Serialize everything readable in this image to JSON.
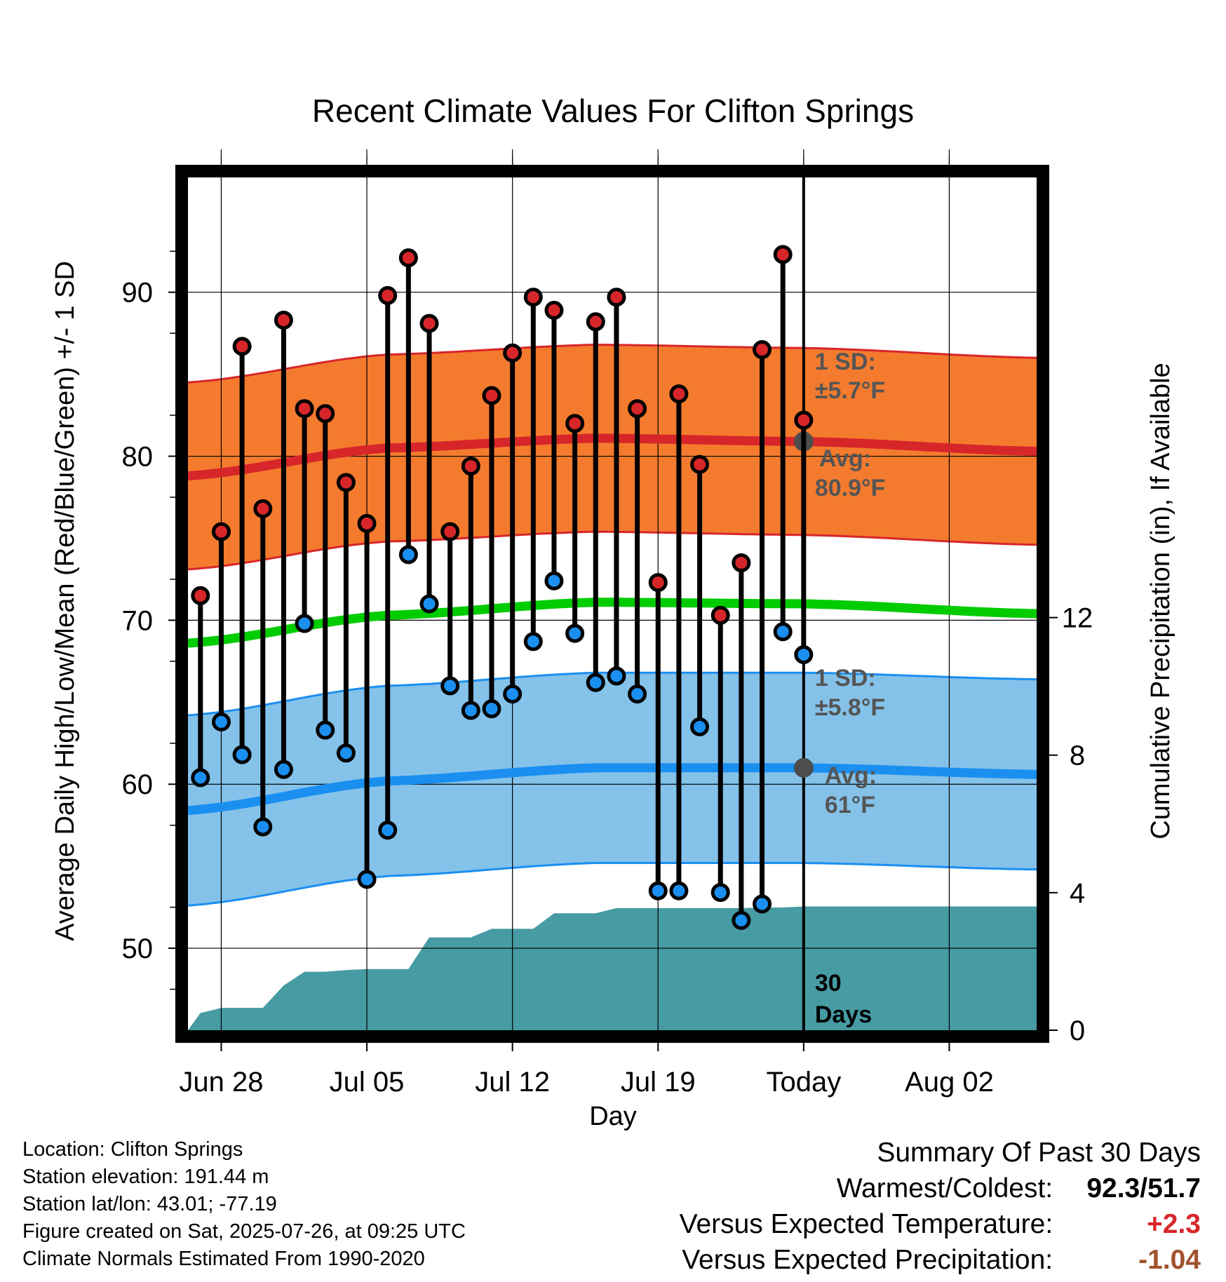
{
  "chart_data": {
    "type": "line",
    "title": "Recent Climate Values For Clifton Springs",
    "xlabel": "Day",
    "ylabel_left": "Average Daily High/Low/Mean (Red/Blue/Green) +/- 1 SD",
    "ylabel_right": "Cumulative Precipitation (in), If Available",
    "x_ticks": [
      "Jun 28",
      "Jul 05",
      "Jul 12",
      "Jul 19",
      "Today",
      "Aug 02"
    ],
    "y_ticks_left": [
      "50",
      "60",
      "70",
      "80",
      "90"
    ],
    "y_ticks_right": [
      "0",
      "4",
      "8",
      "12"
    ],
    "ylim_left": [
      45,
      97
    ],
    "ylim_right": [
      0,
      24.8
    ],
    "xlim_days": [
      -29.6,
      11.2
    ],
    "today_offset": 0,
    "grid": true,
    "highs": [
      71.5,
      75.4,
      86.7,
      76.8,
      88.3,
      82.9,
      82.6,
      78.4,
      75.9,
      89.8,
      92.1,
      88.1,
      75.4,
      79.4,
      83.7,
      86.3,
      89.7,
      88.9,
      82.0,
      88.2,
      89.7,
      82.9,
      72.3,
      83.8,
      79.5,
      70.3,
      73.5,
      86.5,
      92.3,
      82.2
    ],
    "lows": [
      60.4,
      63.8,
      61.8,
      57.4,
      60.9,
      69.8,
      63.3,
      61.9,
      54.2,
      57.2,
      74.0,
      71.0,
      66.0,
      64.5,
      64.6,
      65.5,
      68.7,
      72.4,
      69.2,
      66.2,
      66.6,
      65.5,
      53.5,
      53.5,
      63.5,
      53.4,
      51.7,
      52.7,
      69.3,
      67.9
    ],
    "normal_high_days": [
      -29.6,
      -20,
      -10,
      0,
      11.2
    ],
    "normal_high": [
      78.8,
      80.5,
      81.1,
      80.9,
      80.3
    ],
    "normal_low": [
      58.4,
      60.2,
      61.0,
      61.0,
      60.6
    ],
    "normal_mean": [
      68.6,
      70.3,
      71.1,
      71.0,
      70.4
    ],
    "high_sd": 5.7,
    "low_sd": 5.8,
    "precip_days": [
      -29.6,
      -29,
      -28,
      -27,
      -26,
      -25,
      -24,
      -23,
      -22,
      -21,
      -20,
      -19,
      -18,
      -17,
      -16,
      -15,
      -14,
      -13,
      -12,
      -11,
      -10,
      -9,
      -8,
      -7,
      -6,
      -5,
      -4,
      -3,
      -2,
      -1,
      0,
      11.2
    ],
    "precip_cum": [
      0,
      0.5,
      0.65,
      0.65,
      0.65,
      1.3,
      1.7,
      1.7,
      1.75,
      1.78,
      1.78,
      1.78,
      2.7,
      2.7,
      2.7,
      2.95,
      2.95,
      2.95,
      3.4,
      3.4,
      3.4,
      3.55,
      3.55,
      3.55,
      3.55,
      3.55,
      3.55,
      3.55,
      3.57,
      3.57,
      3.6,
      3.6
    ],
    "high_avg_value": 80.9,
    "low_avg_value": 61,
    "colors": {
      "high_band": "#f47b2e",
      "high_line": "#d7262a",
      "low_band": "#84c2ea",
      "low_line": "#1b8ff0",
      "mean_line": "#00cc00",
      "precip": "#479ba3",
      "high_dot": "#d7262a",
      "low_dot": "#1b8ff0"
    },
    "annotations": {
      "high_sd_line1": "1 SD:",
      "high_sd_line2": "±5.7°F",
      "high_avg_line1": "Avg:",
      "high_avg_line2": "80.9°F",
      "low_sd_line1": "1 SD:",
      "low_sd_line2": "±5.8°F",
      "low_avg_line1": "Avg:",
      "low_avg_line2": "61°F",
      "days_line1": "30",
      "days_line2": "Days"
    }
  },
  "footer": {
    "location": "Location: Clifton Springs",
    "elevation": "Station elevation: 191.44 m",
    "latlon": "Station lat/lon: 43.01; -77.19",
    "created": "Figure created on Sat, 2025-07-26, at 09:25 UTC",
    "normals": "Climate Normals Estimated From 1990-2020"
  },
  "summary": {
    "heading": "Summary Of Past 30 Days",
    "warm_label": "Warmest/Coldest:",
    "warm_value": "92.3/51.7",
    "temp_label": "Versus Expected Temperature:",
    "temp_value": "+2.3",
    "temp_color": "#d7262a",
    "precip_label": "Versus Expected Precipitation:",
    "precip_value": "-1.04",
    "precip_color": "#a0522d"
  }
}
